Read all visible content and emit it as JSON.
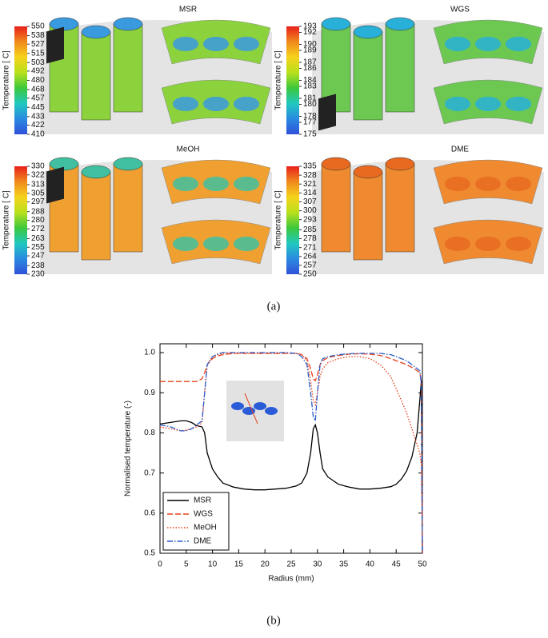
{
  "chart_data": [
    {
      "type": "colorbar",
      "title": "MSR",
      "ylabel": "Temperature [ C]",
      "ylim": [
        410,
        550
      ],
      "yticks": [
        550,
        538,
        527,
        515,
        503,
        492,
        480,
        468,
        457,
        445,
        433,
        422,
        410
      ],
      "colors": [
        "#e8201c",
        "#f08a1c",
        "#f5d21c",
        "#b8e01c",
        "#3cc83c",
        "#20c8c0",
        "#2a8ae0",
        "#3050d8"
      ]
    },
    {
      "type": "colorbar",
      "title": "WGS",
      "ylabel": "Temperature [ C]",
      "ylim": [
        175,
        193
      ],
      "yticks": [
        193,
        192,
        190,
        189,
        187,
        186,
        184,
        183,
        181,
        180,
        178,
        177,
        175
      ],
      "colors": [
        "#e8201c",
        "#f08a1c",
        "#f5d21c",
        "#b8e01c",
        "#3cc83c",
        "#20c8c0",
        "#2a8ae0",
        "#3050d8"
      ]
    },
    {
      "type": "colorbar",
      "title": "MeOH",
      "ylabel": "Temperature [ C]",
      "ylim": [
        230,
        330
      ],
      "yticks": [
        330,
        322,
        313,
        305,
        297,
        288,
        280,
        272,
        263,
        255,
        247,
        238,
        230
      ],
      "colors": [
        "#e8201c",
        "#f08a1c",
        "#f5d21c",
        "#b8e01c",
        "#3cc83c",
        "#20c8c0",
        "#2a8ae0",
        "#3050d8"
      ]
    },
    {
      "type": "colorbar",
      "title": "DME",
      "ylabel": "Temperature [ C]",
      "ylim": [
        250,
        335
      ],
      "yticks": [
        335,
        328,
        321,
        314,
        307,
        300,
        293,
        285,
        278,
        271,
        264,
        257,
        250
      ],
      "colors": [
        "#e8201c",
        "#f08a1c",
        "#f5d21c",
        "#b8e01c",
        "#3cc83c",
        "#20c8c0",
        "#2a8ae0",
        "#3050d8"
      ]
    },
    {
      "type": "line",
      "xlabel": "Radius (mm)",
      "ylabel": "Normalised temperature (-)",
      "x": [
        0,
        2,
        4,
        5,
        6,
        7,
        8,
        8.5,
        9,
        10,
        11,
        12,
        14,
        16,
        18,
        20,
        22,
        24,
        26,
        27,
        28,
        28.7,
        29.2,
        29.6,
        30,
        30.5,
        31,
        32,
        34,
        36,
        38,
        40,
        42,
        44,
        45,
        46,
        47,
        48,
        49,
        49.5,
        49.8,
        50
      ],
      "xlim": [
        0,
        50
      ],
      "xticks": [
        0,
        5,
        10,
        15,
        20,
        25,
        30,
        35,
        40,
        45,
        50
      ],
      "ylim": [
        0.5,
        1.022
      ],
      "yticks": [
        0.5,
        0.6,
        0.7,
        0.8,
        0.9,
        {
          "value": 1,
          "label": "1.0"
        }
      ],
      "legend": "lower-left",
      "series": [
        {
          "name": "MSR",
          "color": "#000000",
          "dash": "solid",
          "values": [
            0.822,
            0.826,
            0.83,
            0.83,
            0.826,
            0.818,
            0.815,
            0.8,
            0.75,
            0.71,
            0.69,
            0.675,
            0.665,
            0.66,
            0.658,
            0.658,
            0.66,
            0.662,
            0.668,
            0.675,
            0.7,
            0.75,
            0.81,
            0.82,
            0.8,
            0.75,
            0.71,
            0.69,
            0.672,
            0.665,
            0.66,
            0.66,
            0.662,
            0.666,
            0.672,
            0.685,
            0.705,
            0.74,
            0.8,
            0.88,
            0.93,
            0.5
          ]
        },
        {
          "name": "WGS",
          "color": "#e8401c",
          "dash": "dashed",
          "values": [
            0.928,
            0.928,
            0.928,
            0.928,
            0.928,
            0.928,
            0.935,
            0.95,
            0.97,
            0.985,
            0.992,
            0.995,
            0.998,
            0.998,
            0.998,
            0.998,
            0.998,
            0.998,
            0.998,
            0.995,
            0.985,
            0.96,
            0.935,
            0.93,
            0.945,
            0.97,
            0.98,
            0.988,
            0.993,
            0.996,
            0.997,
            0.996,
            0.993,
            0.985,
            0.98,
            0.975,
            0.97,
            0.963,
            0.955,
            0.95,
            0.93,
            0.5
          ]
        },
        {
          "name": "MeOH",
          "color": "#e8401c",
          "dash": "dotted",
          "values": [
            0.815,
            0.81,
            0.805,
            0.807,
            0.81,
            0.815,
            0.825,
            0.9,
            0.97,
            0.99,
            0.995,
            0.998,
            0.998,
            0.998,
            0.998,
            0.998,
            0.998,
            0.998,
            0.998,
            0.995,
            0.98,
            0.93,
            0.88,
            0.87,
            0.9,
            0.94,
            0.96,
            0.975,
            0.985,
            0.99,
            0.99,
            0.985,
            0.97,
            0.94,
            0.91,
            0.88,
            0.85,
            0.81,
            0.77,
            0.75,
            0.72,
            0.5
          ]
        },
        {
          "name": "DME",
          "color": "#2a5cc8",
          "dash": "dashdot",
          "values": [
            0.82,
            0.815,
            0.805,
            0.805,
            0.81,
            0.82,
            0.83,
            0.9,
            0.97,
            0.99,
            0.997,
            1.0,
            1.0,
            1.0,
            1.0,
            1.0,
            1.0,
            1.0,
            0.998,
            0.99,
            0.97,
            0.9,
            0.84,
            0.83,
            0.9,
            0.97,
            0.985,
            0.99,
            0.995,
            0.997,
            0.998,
            0.998,
            0.998,
            0.995,
            0.99,
            0.985,
            0.98,
            0.97,
            0.96,
            0.955,
            0.92,
            0.5
          ]
        }
      ]
    }
  ],
  "panel_labels": {
    "a": "(a)",
    "b": "(b)"
  }
}
